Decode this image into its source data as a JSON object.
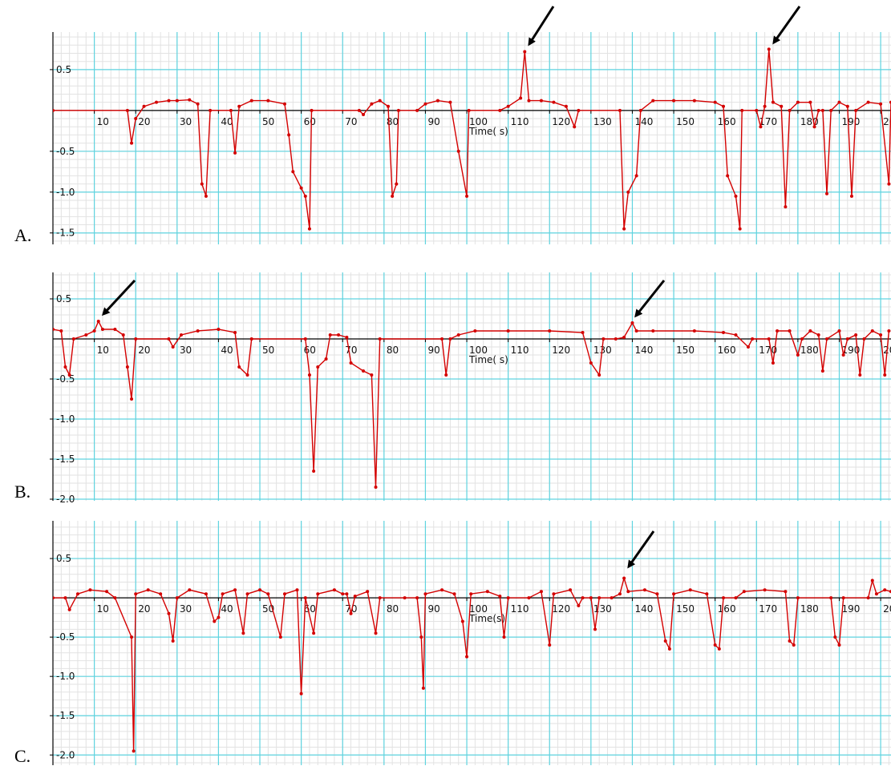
{
  "chart_data": [
    {
      "type": "line",
      "label": "A.",
      "x_label": "Time( s)",
      "xlim": [
        0,
        202.5
      ],
      "ylim": [
        -1.64,
        0.96
      ],
      "xticks": [
        10,
        20,
        30,
        40,
        50,
        60,
        70,
        80,
        90,
        100,
        110,
        120,
        130,
        140,
        150,
        160,
        170,
        180,
        190,
        200
      ],
      "yticks": [
        0.5,
        -0.5,
        {
          "value": -1,
          "label": "-1.0"
        },
        -1.5
      ],
      "grid": true,
      "series": [
        {
          "color": "#d40000",
          "x": [
            0,
            18,
            19,
            20,
            22,
            25,
            28,
            30,
            33,
            35,
            36,
            37,
            38,
            43,
            44,
            45,
            48,
            52,
            56,
            57,
            58,
            60,
            61,
            62,
            62.5,
            74,
            75,
            77,
            79,
            81,
            82,
            83,
            83.5,
            88,
            90,
            93,
            96,
            98,
            100,
            100.5,
            108,
            110,
            113,
            114,
            115,
            118,
            121,
            124,
            126,
            127,
            137,
            138,
            139,
            141,
            142,
            145,
            150,
            155,
            160,
            162,
            163,
            165,
            166,
            166.5,
            170,
            171,
            172,
            173,
            174,
            176,
            177,
            178,
            180,
            183,
            184,
            185,
            186,
            187,
            188,
            190,
            192,
            193,
            194,
            197,
            200,
            202,
            202.5
          ],
          "values": [
            0,
            0,
            -0.4,
            -0.1,
            0.05,
            0.1,
            0.12,
            0.12,
            0.13,
            0.08,
            -0.9,
            -1.05,
            0,
            0,
            -0.52,
            0.05,
            0.12,
            0.12,
            0.08,
            -0.3,
            -0.75,
            -0.95,
            -1.05,
            -1.45,
            0,
            0,
            -0.05,
            0.08,
            0.12,
            0.05,
            -1.05,
            -0.9,
            0,
            0,
            0.08,
            0.12,
            0.1,
            -0.5,
            -1.05,
            0,
            0,
            0.05,
            0.15,
            0.72,
            0.12,
            0.12,
            0.1,
            0.05,
            -0.2,
            0,
            0,
            -1.45,
            -1.0,
            -0.8,
            0,
            0.12,
            0.12,
            0.12,
            0.1,
            0.05,
            -0.8,
            -1.05,
            -1.45,
            0,
            0,
            -0.2,
            0.05,
            0.75,
            0.1,
            0.05,
            -1.18,
            0,
            0.1,
            0.1,
            -0.2,
            0,
            0,
            -1.02,
            0,
            0.1,
            0.05,
            -1.05,
            0,
            0.1,
            0.08,
            -0.9,
            0.1
          ]
        }
      ]
    },
    {
      "type": "line",
      "label": "B.",
      "x_label": "Time( s)",
      "xlim": [
        0,
        202.5
      ],
      "ylim": [
        -2.02,
        0.83
      ],
      "xticks": [
        10,
        20,
        30,
        40,
        50,
        60,
        70,
        80,
        90,
        100,
        110,
        120,
        130,
        140,
        150,
        160,
        170,
        180,
        190,
        200
      ],
      "yticks": [
        0.5,
        -0.5,
        {
          "value": -1,
          "label": "-1.0"
        },
        -1.5,
        {
          "value": -2,
          "label": "-2.0"
        }
      ],
      "grid": true,
      "series": [
        {
          "color": "#d40000",
          "x": [
            0,
            2,
            3,
            4,
            5,
            8,
            10,
            11,
            12,
            15,
            17,
            18,
            19,
            20,
            28,
            29,
            31,
            35,
            40,
            44,
            45,
            47,
            48,
            61,
            62,
            63,
            64,
            66,
            67,
            69,
            71,
            72,
            75,
            77,
            78,
            79,
            94,
            95,
            96,
            98,
            102,
            110,
            120,
            128,
            130,
            132,
            133,
            136,
            138,
            140,
            141,
            145,
            155,
            162,
            165,
            168,
            169,
            173,
            174,
            175,
            178,
            180,
            181,
            183,
            185,
            186,
            187,
            190,
            191,
            192,
            194,
            195,
            196,
            198,
            200,
            201,
            202
          ],
          "values": [
            0.12,
            0.1,
            -0.35,
            -0.45,
            0,
            0.05,
            0.1,
            0.22,
            0.12,
            0.12,
            0.05,
            -0.35,
            -0.75,
            0,
            0,
            -0.1,
            0.05,
            0.1,
            0.12,
            0.08,
            -0.35,
            -0.45,
            0,
            0,
            -0.45,
            -1.65,
            -0.35,
            -0.25,
            0.05,
            0.05,
            0.02,
            -0.3,
            -0.4,
            -0.45,
            -1.85,
            0,
            0,
            -0.45,
            0,
            0.05,
            0.1,
            0.1,
            0.1,
            0.08,
            -0.3,
            -0.45,
            0,
            0,
            0.02,
            0.2,
            0.1,
            0.1,
            0.1,
            0.08,
            0.05,
            -0.1,
            0,
            0,
            -0.3,
            0.1,
            0.1,
            -0.2,
            0,
            0.1,
            0.05,
            -0.4,
            0,
            0.1,
            -0.2,
            0,
            0.05,
            -0.45,
            0,
            0.1,
            0.05,
            -0.45,
            0.1
          ]
        }
      ]
    },
    {
      "type": "line",
      "label": "C.",
      "x_label": "Time(s)",
      "xlim": [
        0,
        202.5
      ],
      "ylim": [
        -2.13,
        0.98
      ],
      "xticks": [
        10,
        20,
        30,
        40,
        50,
        60,
        70,
        80,
        90,
        100,
        110,
        120,
        130,
        140,
        150,
        160,
        170,
        180,
        190,
        200
      ],
      "yticks": [
        0.5,
        -0.5,
        {
          "value": -1,
          "label": "-1.0"
        },
        -1.5,
        {
          "value": -2,
          "label": "-2.0"
        }
      ],
      "grid": true,
      "series": [
        {
          "color": "#d40000",
          "x": [
            0,
            3,
            4,
            6,
            9,
            13,
            15,
            19,
            19.5,
            20,
            23,
            26,
            28,
            29,
            30,
            33,
            37,
            39,
            40,
            41,
            44,
            46,
            47,
            50,
            52,
            55,
            56,
            59,
            60,
            61,
            63,
            64,
            68,
            70,
            71,
            72,
            73,
            76,
            78,
            79,
            85,
            88,
            89,
            89.5,
            90,
            94,
            97,
            99,
            100,
            101,
            105,
            108,
            109,
            110,
            115,
            118,
            120,
            121,
            125,
            127,
            128,
            130,
            131,
            132,
            135,
            137,
            138,
            139,
            143,
            146,
            148,
            149,
            150,
            154,
            158,
            160,
            161,
            162,
            165,
            167,
            172,
            177,
            178,
            179,
            180,
            188,
            189,
            190,
            191,
            197,
            198,
            199,
            201,
            202.5
          ],
          "values": [
            0,
            0,
            -0.15,
            0.05,
            0.1,
            0.08,
            0,
            -0.5,
            -1.95,
            0.05,
            0.1,
            0.05,
            -0.2,
            -0.55,
            0,
            0.1,
            0.05,
            -0.3,
            -0.25,
            0.05,
            0.1,
            -0.45,
            0.05,
            0.1,
            0.05,
            -0.5,
            0.05,
            0.1,
            -1.22,
            0,
            -0.45,
            0.05,
            0.1,
            0.05,
            0.05,
            -0.2,
            0.02,
            0.08,
            -0.45,
            0,
            0,
            0,
            -0.5,
            -1.15,
            0.05,
            0.1,
            0.05,
            -0.3,
            -0.75,
            0.05,
            0.08,
            0.02,
            -0.5,
            0,
            0,
            0.08,
            -0.6,
            0.05,
            0.1,
            -0.1,
            0,
            0,
            -0.4,
            0,
            0,
            0.05,
            0.25,
            0.08,
            0.1,
            0.05,
            -0.55,
            -0.65,
            0.05,
            0.1,
            0.05,
            -0.6,
            -0.65,
            0,
            0,
            0.08,
            0.1,
            0.08,
            -0.55,
            -0.6,
            0,
            0,
            -0.5,
            -0.6,
            0,
            0,
            0.22,
            0.05,
            0.1,
            0.08
          ]
        }
      ]
    }
  ]
}
